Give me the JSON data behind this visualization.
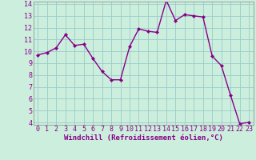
{
  "x": [
    0,
    1,
    2,
    3,
    4,
    5,
    6,
    7,
    8,
    9,
    10,
    11,
    12,
    13,
    14,
    15,
    16,
    17,
    18,
    19,
    20,
    21,
    22,
    23
  ],
  "y": [
    9.7,
    9.9,
    10.3,
    11.4,
    10.5,
    10.6,
    9.4,
    8.3,
    7.6,
    7.6,
    10.4,
    11.9,
    11.7,
    11.6,
    14.3,
    12.6,
    13.1,
    13.0,
    12.9,
    9.6,
    8.8,
    6.3,
    3.9,
    4.0
  ],
  "line_color": "#880088",
  "marker": "D",
  "marker_size": 2.0,
  "bg_color": "#cceedd",
  "grid_color": "#99cccc",
  "xlabel": "Windchill (Refroidissement éolien,°C)",
  "xlabel_fontsize": 6.5,
  "xlim": [
    -0.5,
    23.5
  ],
  "ylim": [
    3.8,
    14.2
  ],
  "yticks": [
    4,
    5,
    6,
    7,
    8,
    9,
    10,
    11,
    12,
    13,
    14
  ],
  "xticks": [
    0,
    1,
    2,
    3,
    4,
    5,
    6,
    7,
    8,
    9,
    10,
    11,
    12,
    13,
    14,
    15,
    16,
    17,
    18,
    19,
    20,
    21,
    22,
    23
  ],
  "tick_fontsize": 6.0,
  "tick_color": "#880088",
  "axis_color": "#888888",
  "line_width": 1.0
}
